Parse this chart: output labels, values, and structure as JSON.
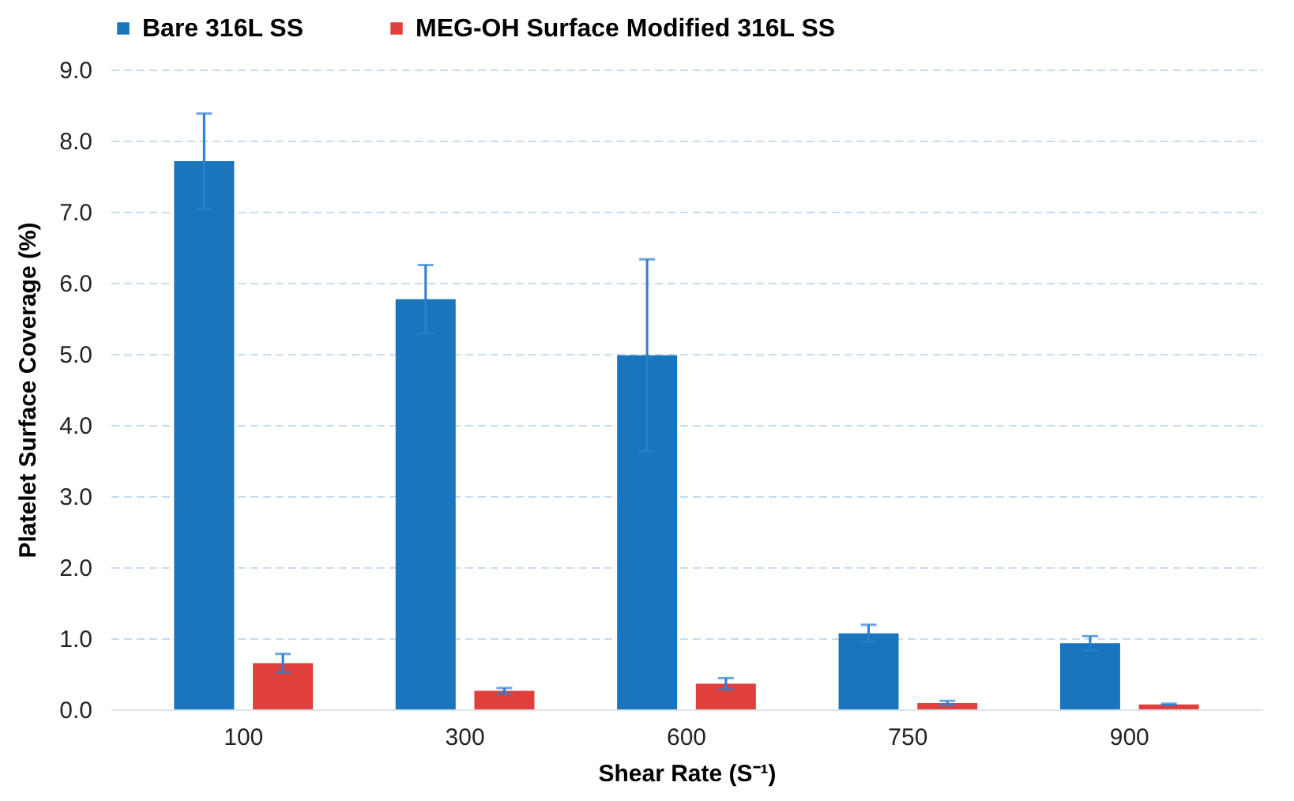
{
  "chart_data": {
    "type": "bar",
    "xlabel": "Shear Rate (S⁻¹)",
    "ylabel": "Platelet Surface Coverage (%)",
    "categories": [
      "100",
      "300",
      "600",
      "750",
      "900"
    ],
    "series": [
      {
        "name": "Bare 316L SS",
        "color": "#1a75bc",
        "values": [
          7.71,
          5.77,
          4.98,
          1.07,
          0.93
        ],
        "errors": [
          0.67,
          0.48,
          1.35,
          0.12,
          0.1
        ]
      },
      {
        "name": "MEG-OH Surface Modified 316L SS",
        "color": "#e0403c",
        "values": [
          0.65,
          0.26,
          0.36,
          0.09,
          0.07
        ],
        "errors": [
          0.13,
          0.04,
          0.08,
          0.03,
          0.01
        ]
      }
    ],
    "ylim": [
      0,
      9
    ],
    "yticks": [
      {
        "value": 0,
        "label": "0.0"
      },
      {
        "value": 1,
        "label": "1.0"
      },
      {
        "value": 2,
        "label": "2.0"
      },
      {
        "value": 3,
        "label": "3.0"
      },
      {
        "value": 4,
        "label": "4.0"
      },
      {
        "value": 5,
        "label": "5.0"
      },
      {
        "value": 6,
        "label": "6.0"
      },
      {
        "value": 7,
        "label": "7.0"
      },
      {
        "value": 8,
        "label": "8.0"
      },
      {
        "value": 9,
        "label": "9.0"
      }
    ],
    "grid": "y",
    "legend": "top"
  }
}
